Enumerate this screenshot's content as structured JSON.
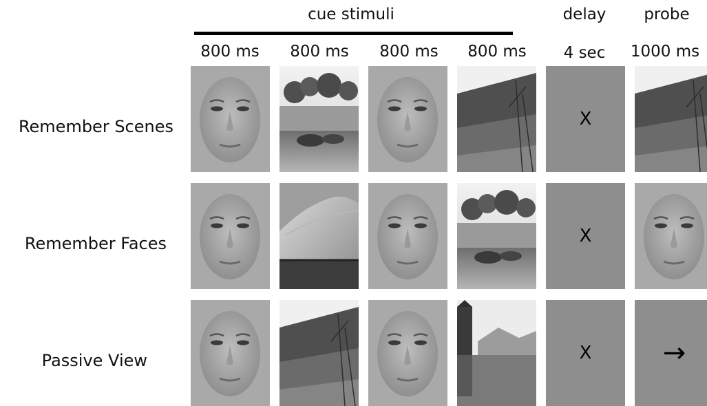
{
  "header": {
    "cue_title": "cue stimuli",
    "delay_title": "delay",
    "probe_title": "probe",
    "durations": [
      "800 ms",
      "800 ms",
      "800 ms",
      "800 ms",
      "4 sec",
      "1000 ms"
    ]
  },
  "rows": [
    {
      "label": "Remember Scenes",
      "cues": [
        "face",
        "scene-pond",
        "face",
        "scene-hill"
      ],
      "delay": "X",
      "probe": "scene-hill"
    },
    {
      "label": "Remember Faces",
      "cues": [
        "face",
        "scene-dunes",
        "face",
        "scene-pond"
      ],
      "delay": "X",
      "probe": "face"
    },
    {
      "label": "Passive View",
      "cues": [
        "face",
        "scene-hill",
        "face",
        "scene-lake"
      ],
      "delay": "X",
      "probe": "arrow"
    }
  ],
  "delay_symbol": "X",
  "probe_arrow": "→"
}
